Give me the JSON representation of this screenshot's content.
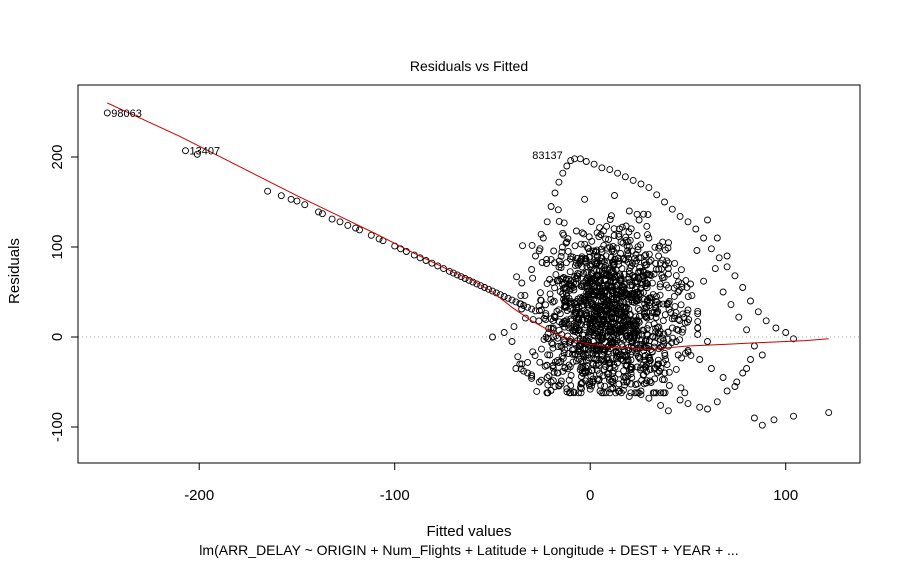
{
  "chart_data": {
    "type": "scatter",
    "title": "Residuals vs Fitted",
    "xlabel": "Fitted values",
    "ylabel": "Residuals",
    "caption": "lm(ARR_DELAY ~ ORIGIN + Num_Flights + Latitude + Longitude + DEST + YEAR +  ...",
    "xlim": [
      -262,
      138
    ],
    "ylim": [
      -140,
      280
    ],
    "x_ticks": [
      -200,
      -100,
      0,
      100
    ],
    "y_ticks": [
      -100,
      0,
      100,
      200
    ],
    "x_tick_labels": [
      "-200",
      "-100",
      "0",
      "100"
    ],
    "y_tick_labels": [
      "-100",
      "0",
      "100",
      "200"
    ],
    "reference_line": {
      "y": 0,
      "style": "dotted",
      "color": "#aaaaaa"
    },
    "point_color": "#000000",
    "smoother_color": "#cc0000",
    "labeled_points": [
      {
        "label": "98063",
        "x": -247,
        "y": 249
      },
      {
        "label": "13407",
        "x": -207,
        "y": 207
      },
      {
        "label": "83137",
        "x": -12,
        "y": 202
      }
    ],
    "points": [
      [
        -247,
        249
      ],
      [
        -207,
        207
      ],
      [
        -201,
        203
      ],
      [
        -165,
        162
      ],
      [
        -158,
        157
      ],
      [
        -153,
        153
      ],
      [
        -150,
        151
      ],
      [
        -146,
        147
      ],
      [
        -139,
        139
      ],
      [
        -137,
        137
      ],
      [
        -132,
        131
      ],
      [
        -128,
        128
      ],
      [
        -124,
        124
      ],
      [
        -120,
        121
      ],
      [
        -118,
        119
      ],
      [
        -112,
        113
      ],
      [
        -108,
        109
      ],
      [
        -106,
        107
      ],
      [
        -100,
        101
      ],
      [
        -97,
        98
      ],
      [
        -94,
        95
      ],
      [
        -90,
        91
      ],
      [
        -87,
        88
      ],
      [
        -84,
        85
      ],
      [
        -81,
        82
      ],
      [
        -78,
        79
      ],
      [
        -75,
        76
      ],
      [
        -72,
        73
      ],
      [
        -70,
        71
      ],
      [
        -68,
        69
      ],
      [
        -66,
        67
      ],
      [
        -64,
        65
      ],
      [
        -62,
        63
      ],
      [
        -60,
        61
      ],
      [
        -58,
        59
      ],
      [
        -56,
        57
      ],
      [
        -54,
        55
      ],
      [
        -52,
        53
      ],
      [
        -50,
        51
      ],
      [
        -48,
        49
      ],
      [
        -46,
        47
      ],
      [
        -44,
        45
      ],
      [
        -42,
        43
      ],
      [
        -40,
        41
      ],
      [
        -38,
        39
      ],
      [
        -36,
        37
      ],
      [
        -34,
        35
      ],
      [
        -32,
        33
      ],
      [
        -30,
        31
      ],
      [
        -28,
        29
      ],
      [
        -50,
        0
      ],
      [
        -44,
        5
      ],
      [
        -40,
        -5
      ],
      [
        -38,
        -35
      ],
      [
        -34,
        -38
      ],
      [
        -36,
        -30
      ],
      [
        -30,
        -42
      ],
      [
        -26,
        -50
      ],
      [
        -22,
        -45
      ],
      [
        -18,
        -55
      ],
      [
        -35,
        60
      ],
      [
        -30,
        75
      ],
      [
        -28,
        90
      ],
      [
        -24,
        110
      ],
      [
        -22,
        128
      ],
      [
        -20,
        145
      ],
      [
        -18,
        160
      ],
      [
        -16,
        172
      ],
      [
        -14,
        182
      ],
      [
        -12,
        190
      ],
      [
        -10,
        196
      ],
      [
        -8,
        198
      ],
      [
        -5,
        198
      ],
      [
        -2,
        195
      ],
      [
        2,
        192
      ],
      [
        6,
        188
      ],
      [
        10,
        186
      ],
      [
        14,
        182
      ],
      [
        18,
        178
      ],
      [
        22,
        174
      ],
      [
        26,
        170
      ],
      [
        30,
        166
      ],
      [
        34,
        158
      ],
      [
        38,
        150
      ],
      [
        42,
        142
      ],
      [
        46,
        134
      ],
      [
        50,
        128
      ],
      [
        54,
        120
      ],
      [
        58,
        110
      ],
      [
        62,
        98
      ],
      [
        66,
        88
      ],
      [
        70,
        78
      ],
      [
        74,
        68
      ],
      [
        78,
        55
      ],
      [
        82,
        40
      ],
      [
        86,
        28
      ],
      [
        90,
        18
      ],
      [
        95,
        10
      ],
      [
        100,
        5
      ],
      [
        104,
        -2
      ],
      [
        84,
        -90
      ],
      [
        88,
        -98
      ],
      [
        94,
        -92
      ],
      [
        104,
        -88
      ],
      [
        122,
        -84
      ],
      [
        80,
        -35
      ],
      [
        75,
        -50
      ],
      [
        70,
        -60
      ],
      [
        65,
        -72
      ],
      [
        60,
        -80
      ],
      [
        56,
        -78
      ],
      [
        50,
        -74
      ],
      [
        46,
        -70
      ],
      [
        40,
        -82
      ],
      [
        36,
        -76
      ],
      [
        30,
        -68
      ],
      [
        26,
        -64
      ],
      [
        20,
        -66
      ],
      [
        15,
        -60
      ],
      [
        10,
        -62
      ],
      [
        5,
        -60
      ],
      [
        0,
        -58
      ],
      [
        -5,
        -56
      ],
      [
        -10,
        -54
      ],
      [
        -15,
        -52
      ],
      [
        -20,
        -50
      ],
      [
        -25,
        -48
      ],
      [
        -30,
        -46
      ],
      [
        -32,
        -40
      ],
      [
        -35,
        -30
      ],
      [
        -25,
        30
      ],
      [
        -20,
        10
      ],
      [
        -15,
        -10
      ],
      [
        -10,
        20
      ],
      [
        -5,
        40
      ],
      [
        0,
        60
      ],
      [
        5,
        80
      ],
      [
        10,
        100
      ],
      [
        15,
        120
      ],
      [
        20,
        140
      ],
      [
        25,
        130
      ],
      [
        30,
        110
      ],
      [
        35,
        90
      ],
      [
        40,
        70
      ],
      [
        45,
        50
      ],
      [
        50,
        30
      ],
      [
        55,
        10
      ],
      [
        60,
        -5
      ],
      [
        45,
        -20
      ],
      [
        35,
        -30
      ],
      [
        60,
        130
      ],
      [
        65,
        110
      ],
      [
        70,
        90
      ],
      [
        64,
        76
      ],
      [
        58,
        62
      ],
      [
        52,
        46
      ],
      [
        68,
        50
      ],
      [
        72,
        36
      ],
      [
        76,
        22
      ],
      [
        80,
        8
      ],
      [
        84,
        -10
      ],
      [
        88,
        -20
      ],
      [
        82,
        -25
      ],
      [
        78,
        -40
      ],
      [
        74,
        -55
      ],
      [
        68,
        -45
      ],
      [
        62,
        -35
      ],
      [
        56,
        -25
      ],
      [
        50,
        -15
      ],
      [
        44,
        -5
      ]
    ],
    "dense_cluster": {
      "x_center": 10,
      "x_spread": 20,
      "y_center": 25,
      "y_spread": 45,
      "count": 1400
    },
    "smoother": [
      [
        -247,
        260
      ],
      [
        -230,
        243
      ],
      [
        -210,
        223
      ],
      [
        -190,
        201
      ],
      [
        -170,
        179
      ],
      [
        -150,
        157
      ],
      [
        -130,
        136
      ],
      [
        -110,
        115
      ],
      [
        -90,
        93
      ],
      [
        -70,
        72
      ],
      [
        -60,
        63
      ],
      [
        -50,
        50
      ],
      [
        -40,
        33
      ],
      [
        -30,
        18
      ],
      [
        -20,
        6
      ],
      [
        -10,
        -3
      ],
      [
        0,
        -8
      ],
      [
        10,
        -11
      ],
      [
        20,
        -12
      ],
      [
        30,
        -14
      ],
      [
        40,
        -12
      ],
      [
        50,
        -10
      ],
      [
        60,
        -9
      ],
      [
        70,
        -8
      ],
      [
        80,
        -7
      ],
      [
        90,
        -6
      ],
      [
        100,
        -5
      ],
      [
        110,
        -4
      ],
      [
        122,
        -2
      ]
    ]
  }
}
